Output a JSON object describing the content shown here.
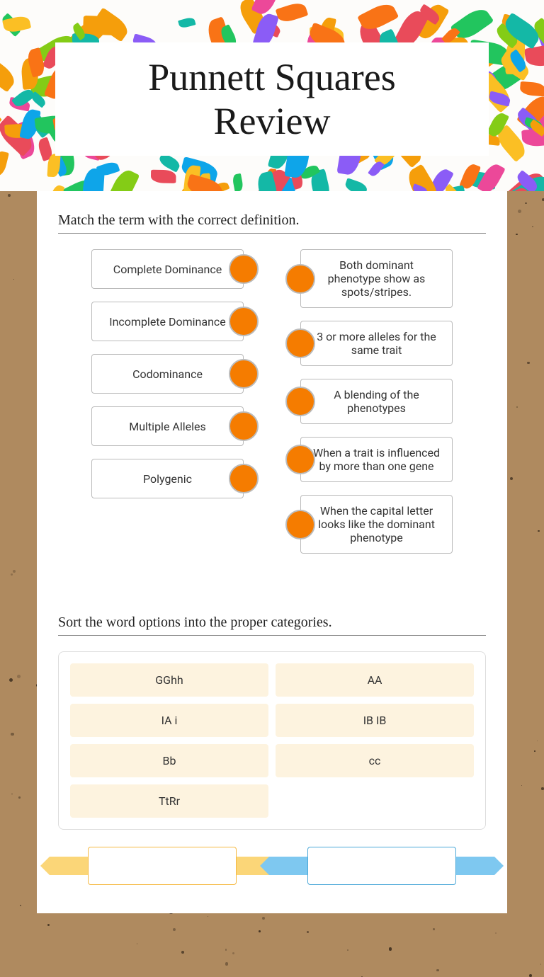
{
  "title": "Punnett Squares\nReview",
  "colors": {
    "dot": "#f57c00",
    "chip_bg": "#fdf3df",
    "banner_yellow": "#fbd678",
    "banner_blue": "#7ec8f0"
  },
  "match": {
    "heading": "Match the term with the correct definition.",
    "terms": [
      "Complete Dominance",
      "Incomplete Dominance",
      "Codominance",
      "Multiple Alleles",
      "Polygenic"
    ],
    "definitions": [
      "Both dominant phenotype show as spots/stripes.",
      "3 or more alleles for the same trait",
      "A blending of the phenotypes",
      "When a trait is influenced by more than one gene",
      "When the capital letter looks like the dominant phenotype"
    ]
  },
  "sort": {
    "heading": "Sort the word options into the proper categories.",
    "words": [
      "GGhh",
      "AA",
      "IA i",
      "IB IB",
      "Bb",
      "cc",
      "TtRr"
    ],
    "targets": [
      {
        "label": "",
        "color": "yellow"
      },
      {
        "label": "",
        "color": "blue"
      }
    ]
  },
  "leaves": {
    "palette": [
      "#e94b5a",
      "#f59e0b",
      "#fbbf24",
      "#84cc16",
      "#22c55e",
      "#0ea5e9",
      "#8b5cf6",
      "#ec4899",
      "#f97316",
      "#14b8a6"
    ]
  }
}
